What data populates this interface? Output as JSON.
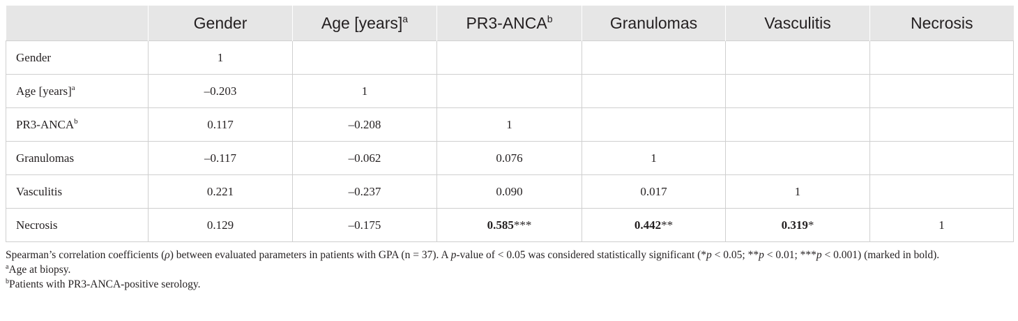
{
  "table": {
    "headers": [
      {
        "text": "",
        "sup": ""
      },
      {
        "text": "Gender",
        "sup": ""
      },
      {
        "text": "Age [years]",
        "sup": "a"
      },
      {
        "text": "PR3-ANCA",
        "sup": "b"
      },
      {
        "text": "Granulomas",
        "sup": ""
      },
      {
        "text": "Vasculitis",
        "sup": ""
      },
      {
        "text": "Necrosis",
        "sup": ""
      }
    ],
    "rows": [
      {
        "label": "Gender",
        "label_sup": "",
        "cells": [
          {
            "value": "1",
            "stars": "",
            "bold": false
          },
          {
            "value": "",
            "stars": "",
            "bold": false
          },
          {
            "value": "",
            "stars": "",
            "bold": false
          },
          {
            "value": "",
            "stars": "",
            "bold": false
          },
          {
            "value": "",
            "stars": "",
            "bold": false
          },
          {
            "value": "",
            "stars": "",
            "bold": false
          }
        ]
      },
      {
        "label": "Age [years]",
        "label_sup": "a",
        "cells": [
          {
            "value": "–0.203",
            "stars": "",
            "bold": false
          },
          {
            "value": "1",
            "stars": "",
            "bold": false
          },
          {
            "value": "",
            "stars": "",
            "bold": false
          },
          {
            "value": "",
            "stars": "",
            "bold": false
          },
          {
            "value": "",
            "stars": "",
            "bold": false
          },
          {
            "value": "",
            "stars": "",
            "bold": false
          }
        ]
      },
      {
        "label": "PR3-ANCA",
        "label_sup": "b",
        "cells": [
          {
            "value": "0.117",
            "stars": "",
            "bold": false
          },
          {
            "value": "–0.208",
            "stars": "",
            "bold": false
          },
          {
            "value": "1",
            "stars": "",
            "bold": false
          },
          {
            "value": "",
            "stars": "",
            "bold": false
          },
          {
            "value": "",
            "stars": "",
            "bold": false
          },
          {
            "value": "",
            "stars": "",
            "bold": false
          }
        ]
      },
      {
        "label": "Granulomas",
        "label_sup": "",
        "cells": [
          {
            "value": "–0.117",
            "stars": "",
            "bold": false
          },
          {
            "value": "–0.062",
            "stars": "",
            "bold": false
          },
          {
            "value": "0.076",
            "stars": "",
            "bold": false
          },
          {
            "value": "1",
            "stars": "",
            "bold": false
          },
          {
            "value": "",
            "stars": "",
            "bold": false
          },
          {
            "value": "",
            "stars": "",
            "bold": false
          }
        ]
      },
      {
        "label": "Vasculitis",
        "label_sup": "",
        "cells": [
          {
            "value": "0.221",
            "stars": "",
            "bold": false
          },
          {
            "value": "–0.237",
            "stars": "",
            "bold": false
          },
          {
            "value": "0.090",
            "stars": "",
            "bold": false
          },
          {
            "value": "0.017",
            "stars": "",
            "bold": false
          },
          {
            "value": "1",
            "stars": "",
            "bold": false
          },
          {
            "value": "",
            "stars": "",
            "bold": false
          }
        ]
      },
      {
        "label": "Necrosis",
        "label_sup": "",
        "cells": [
          {
            "value": "0.129",
            "stars": "",
            "bold": false
          },
          {
            "value": "–0.175",
            "stars": "",
            "bold": false
          },
          {
            "value": "0.585",
            "stars": "***",
            "bold": true
          },
          {
            "value": "0.442",
            "stars": "**",
            "bold": true
          },
          {
            "value": "0.319",
            "stars": "*",
            "bold": true
          },
          {
            "value": "1",
            "stars": "",
            "bold": false
          }
        ]
      }
    ]
  },
  "notes": {
    "caption_part1": "Spearman’s correlation coefficients (",
    "rho": "ρ",
    "caption_part2": ") between evaluated parameters in patients with GPA (n = 37). A ",
    "p1": "p",
    "caption_part3": "-value of < 0.05 was considered statistically significant (*",
    "p2": "p",
    "caption_part4": " < 0.05; **",
    "p3": "p",
    "caption_part5": " < 0.01; ***",
    "p4": "p",
    "caption_part6": " < 0.001) (marked in bold).",
    "footnote_a_marker": "a",
    "footnote_a_text": "Age at biopsy.",
    "footnote_b_marker": "b",
    "footnote_b_text": "Patients with PR3-ANCA-positive serology."
  }
}
